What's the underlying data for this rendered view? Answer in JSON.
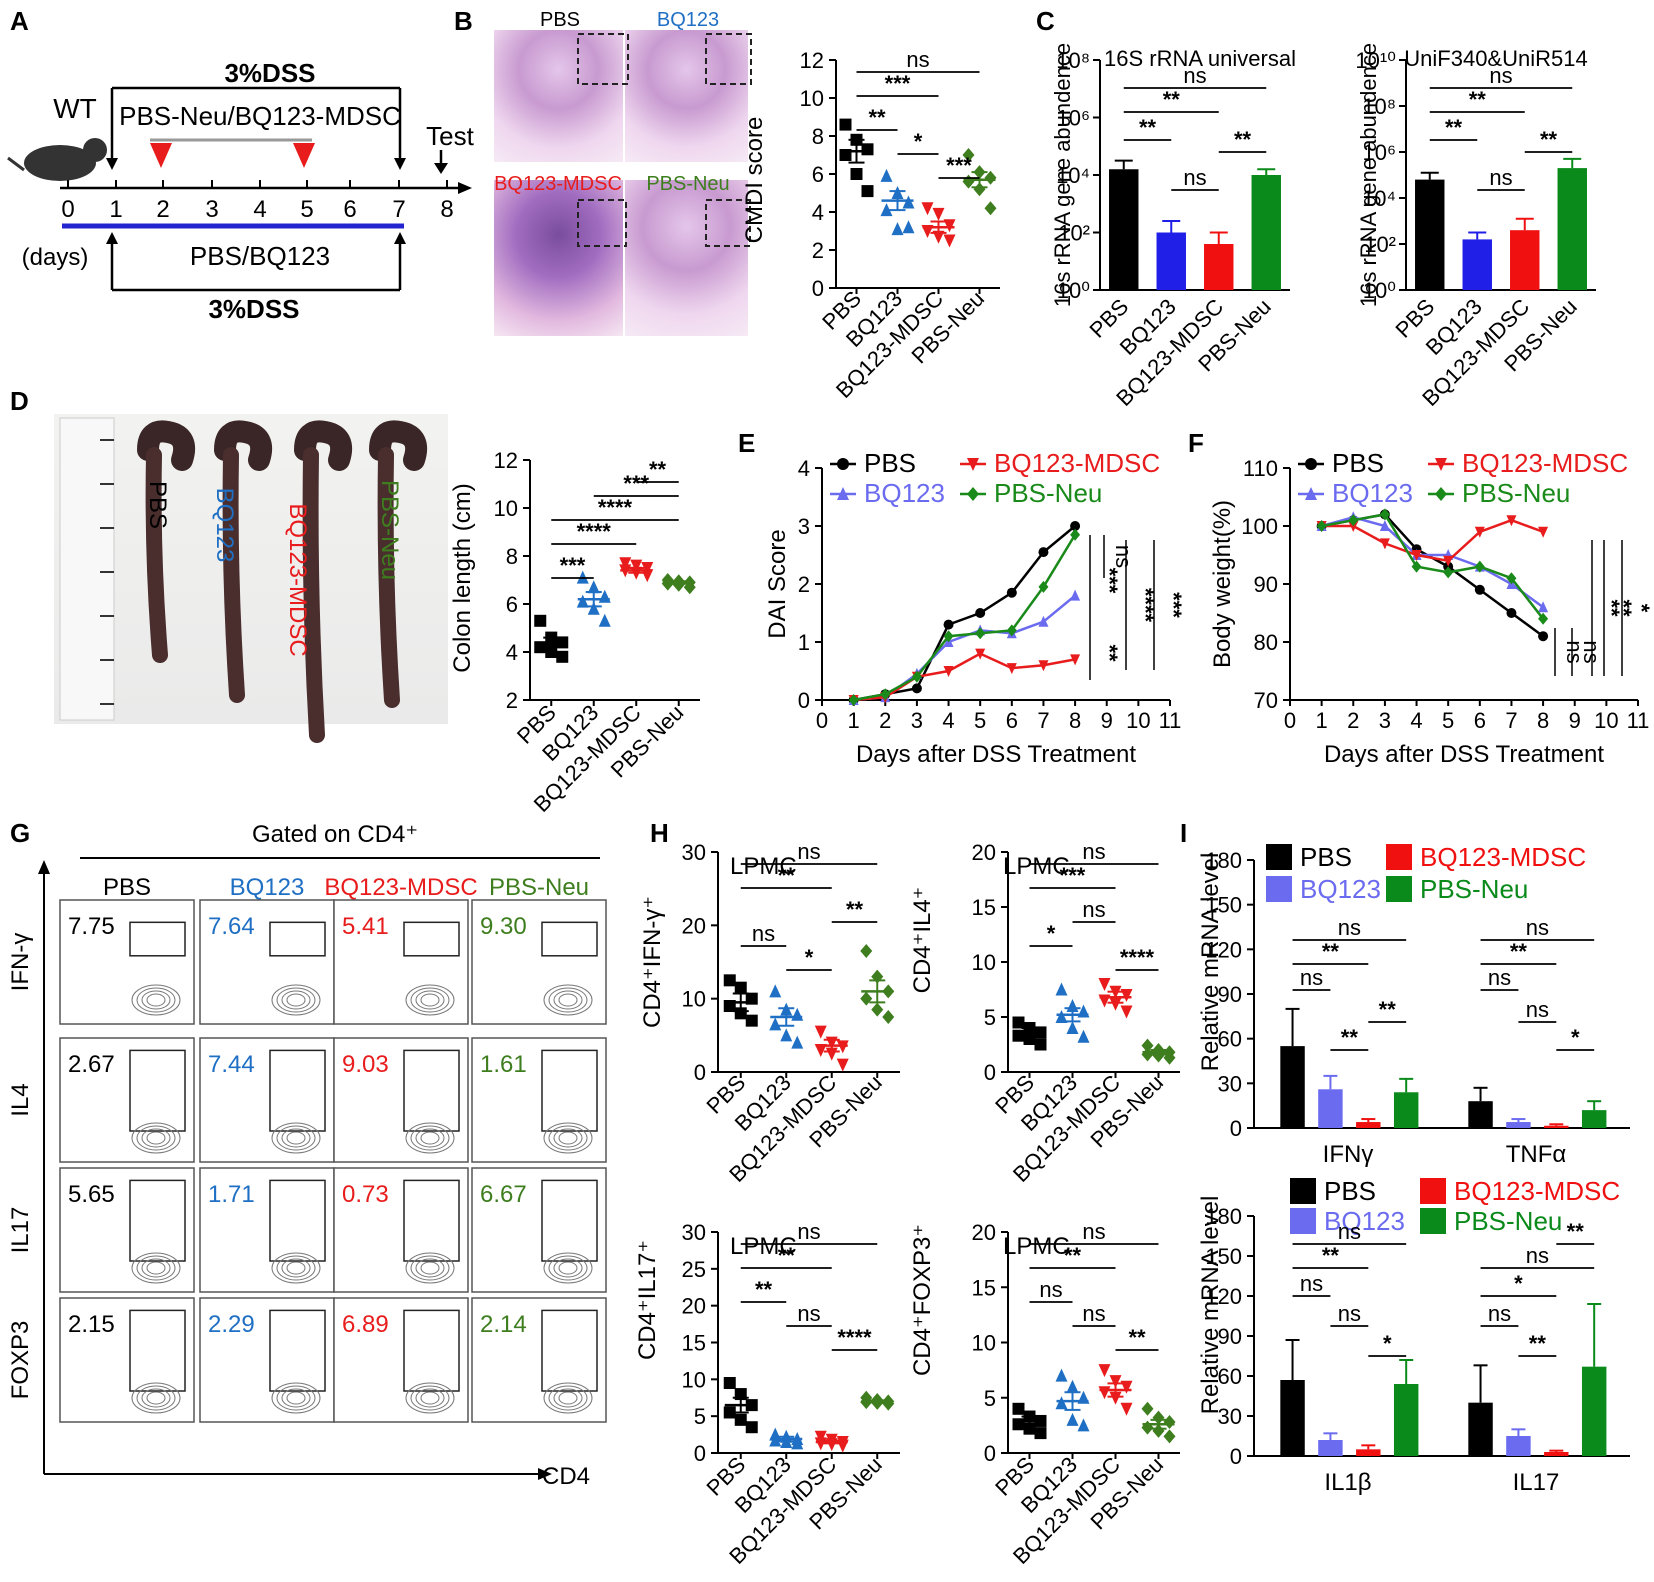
{
  "colors": {
    "PBS": "#000000",
    "BQ123": "#1f6fc4",
    "BQ123-MDSC": "#e81c1c",
    "PBS-Neu": "#3e7e1f",
    "BQ123_line": "#6b6bf0",
    "PBS-Neu_line": "#1a8a1a"
  },
  "groups": [
    "PBS",
    "BQ123",
    "BQ123-MDSC",
    "PBS-Neu"
  ],
  "panel_labels": [
    "A",
    "B",
    "C",
    "D",
    "E",
    "F",
    "G",
    "H",
    "I"
  ],
  "panelA": {
    "wt": "WT",
    "dss_top": "3%DSS",
    "treat_top": "PBS-Neu/BQ123-MDSC",
    "test": "Test",
    "ticks": [
      "0",
      "1",
      "2",
      "3",
      "4",
      "5",
      "6",
      "7",
      "8"
    ],
    "days": "(days)",
    "treat_bottom": "PBS/BQ123",
    "dss_bottom": "3%DSS"
  },
  "panelB": {
    "images": [
      "PBS",
      "BQ123",
      "BQ123-MDSC",
      "PBS-Neu"
    ]
  },
  "panelC": {
    "labels": [
      "PBS",
      "BQ123",
      "BQ123-MDSC",
      "PBS-Neu"
    ]
  },
  "panelG": {
    "title": "Gated on CD4⁺",
    "rows": [
      "IFN-γ",
      "IL4",
      "IL17",
      "FOXP3"
    ],
    "cols": [
      "PBS",
      "BQ123",
      "BQ123-MDSC",
      "PBS-Neu"
    ],
    "xaxis": "CD4",
    "values": [
      [
        "7.75",
        "7.64",
        "5.41",
        "9.30"
      ],
      [
        "2.67",
        "7.44",
        "9.03",
        "1.61"
      ],
      [
        "5.65",
        "1.71",
        "0.73",
        "6.67"
      ],
      [
        "2.15",
        "2.29",
        "6.89",
        "2.14"
      ]
    ]
  },
  "chart_data": [
    {
      "id": "B",
      "type": "scatter",
      "ylabel": "CMDI score",
      "ylim": [
        0,
        12
      ],
      "ticks": [
        "0",
        "2",
        "4",
        "6",
        "8",
        "10",
        "12"
      ],
      "categories": [
        "PBS",
        "BQ123",
        "BQ123-MDSC",
        "PBS-Neu"
      ],
      "means": [
        7.2,
        4.6,
        3.2,
        5.7
      ],
      "sem": [
        0.6,
        0.5,
        0.3,
        0.4
      ],
      "points": [
        [
          8.6,
          7.8,
          7.3,
          7.0,
          6.0,
          5.1
        ],
        [
          5.9,
          5.0,
          4.5,
          4.1,
          3.1,
          3.2
        ],
        [
          4.2,
          3.9,
          3.3,
          3.0,
          2.7,
          2.5
        ],
        [
          7.0,
          6.1,
          5.8,
          5.6,
          5.2,
          4.2
        ]
      ],
      "sig": [
        {
          "a": 0,
          "b": 3,
          "t": "ns"
        },
        {
          "a": 0,
          "b": 2,
          "t": "***"
        },
        {
          "a": 0,
          "b": 1,
          "t": "**"
        },
        {
          "a": 1,
          "b": 2,
          "t": "*"
        },
        {
          "a": 2,
          "b": 3,
          "t": "***"
        }
      ]
    },
    {
      "id": "D1",
      "type": "bar",
      "title": "16S rRNA universal",
      "ylabel": "16s rRNA gene abundence",
      "log": true,
      "ylim": [
        0,
        8
      ],
      "ticks": [
        "10⁰",
        "10²",
        "10⁴",
        "10⁶",
        "10⁸"
      ],
      "categories": [
        "PBS",
        "BQ123",
        "BQ123-MDSC",
        "PBS-Neu"
      ],
      "values": [
        4.2,
        2.0,
        1.6,
        4.0
      ],
      "err": [
        0.3,
        0.4,
        0.4,
        0.2
      ],
      "sig": [
        {
          "a": 0,
          "b": 3,
          "t": "ns"
        },
        {
          "a": 0,
          "b": 2,
          "t": "**"
        },
        {
          "a": 0,
          "b": 1,
          "t": "**"
        },
        {
          "a": 1,
          "b": 2,
          "t": "ns"
        },
        {
          "a": 2,
          "b": 3,
          "t": "**"
        }
      ]
    },
    {
      "id": "D2",
      "type": "bar",
      "title": "UniF340&UniR514",
      "ylabel": "16s rRNA gene abundence",
      "log": true,
      "ylim": [
        0,
        10
      ],
      "ticks": [
        "10⁰",
        "10²",
        "10⁴",
        "10⁶",
        "10⁸",
        "10¹⁰"
      ],
      "categories": [
        "PBS",
        "BQ123",
        "BQ123-MDSC",
        "PBS-Neu"
      ],
      "values": [
        4.8,
        2.2,
        2.6,
        5.3
      ],
      "err": [
        0.3,
        0.3,
        0.5,
        0.4
      ],
      "sig": [
        {
          "a": 0,
          "b": 3,
          "t": "ns"
        },
        {
          "a": 0,
          "b": 2,
          "t": "**"
        },
        {
          "a": 0,
          "b": 1,
          "t": "**"
        },
        {
          "a": 1,
          "b": 2,
          "t": "ns"
        },
        {
          "a": 2,
          "b": 3,
          "t": "**"
        }
      ]
    },
    {
      "id": "C",
      "type": "scatter",
      "ylabel": "Colon length (cm)",
      "ylim": [
        2,
        12
      ],
      "ticks": [
        "2",
        "4",
        "6",
        "8",
        "10",
        "12"
      ],
      "categories": [
        "PBS",
        "BQ123",
        "BQ123-MDSC",
        "PBS-Neu"
      ],
      "means": [
        4.3,
        6.2,
        7.4,
        6.9
      ],
      "sem": [
        0.3,
        0.3,
        0.1,
        0.05
      ],
      "points": [
        [
          5.3,
          4.6,
          4.4,
          4.2,
          4.0,
          3.8
        ],
        [
          7.1,
          6.7,
          6.3,
          6.1,
          5.8,
          5.3
        ],
        [
          7.7,
          7.6,
          7.5,
          7.4,
          7.3,
          7.2
        ],
        [
          7.0,
          6.95,
          6.9,
          6.85,
          6.8,
          6.7
        ]
      ],
      "sig": [
        {
          "a": 2,
          "b": 3,
          "t": "**"
        },
        {
          "a": 1,
          "b": 3,
          "t": "***"
        },
        {
          "a": 0,
          "b": 3,
          "t": "****"
        },
        {
          "a": 0,
          "b": 2,
          "t": "****"
        },
        {
          "a": 0,
          "b": 1,
          "t": "***"
        }
      ]
    },
    {
      "id": "E",
      "type": "line",
      "xlabel": "Days after DSS Treatment",
      "ylabel": "DAI Score",
      "xlim": [
        0,
        11
      ],
      "ylim": [
        0,
        4
      ],
      "x": [
        1,
        2,
        3,
        4,
        5,
        6,
        7,
        8
      ],
      "series": [
        {
          "name": "PBS",
          "values": [
            0,
            0.1,
            0.2,
            1.3,
            1.5,
            1.85,
            2.55,
            3.0
          ]
        },
        {
          "name": "BQ123",
          "values": [
            0,
            0.05,
            0.45,
            1.0,
            1.2,
            1.15,
            1.35,
            1.8
          ]
        },
        {
          "name": "BQ123-MDSC",
          "values": [
            0,
            0.05,
            0.4,
            0.5,
            0.8,
            0.55,
            0.6,
            0.7
          ]
        },
        {
          "name": "PBS-Neu",
          "values": [
            0,
            0.1,
            0.4,
            1.1,
            1.15,
            1.2,
            1.95,
            2.85
          ]
        }
      ],
      "sig": [
        "***",
        "ns",
        "**",
        "****",
        "***"
      ]
    },
    {
      "id": "F",
      "type": "line",
      "xlabel": "Days after DSS Treatment",
      "ylabel": "Body weight(%)",
      "xlim": [
        0,
        11
      ],
      "ylim": [
        70,
        110
      ],
      "x": [
        1,
        2,
        3,
        4,
        5,
        6,
        7,
        8
      ],
      "series": [
        {
          "name": "PBS",
          "values": [
            100,
            101,
            102,
            96,
            93,
            89,
            85,
            81
          ]
        },
        {
          "name": "BQ123",
          "values": [
            100,
            101.5,
            100,
            95,
            95,
            93,
            90,
            86
          ]
        },
        {
          "name": "BQ123-MDSC",
          "values": [
            100,
            100,
            97,
            95,
            94,
            99,
            101,
            99
          ]
        },
        {
          "name": "PBS-Neu",
          "values": [
            100,
            101,
            102,
            93,
            92,
            93,
            91,
            84
          ]
        }
      ],
      "sig": [
        "ns",
        "ns",
        "**",
        "**",
        "*"
      ]
    },
    {
      "id": "H1",
      "type": "scatter",
      "label": "LPMC",
      "ylabel": "CD4⁺IFN-γ⁺",
      "ylim": [
        0,
        30
      ],
      "ticks": [
        "0",
        "10",
        "20",
        "30"
      ],
      "categories": [
        "PBS",
        "BQ123",
        "BQ123-MDSC",
        "PBS-Neu"
      ],
      "means": [
        9.5,
        7.5,
        3.6,
        11.0
      ],
      "sem": [
        1.2,
        1.2,
        0.8,
        1.5
      ],
      "points": [
        [
          12.5,
          11.5,
          10.0,
          9.0,
          8.0,
          7.0
        ],
        [
          11.0,
          8.5,
          7.8,
          6.5,
          5.0,
          4.0
        ],
        [
          5.5,
          4.0,
          3.5,
          3.0,
          2.5,
          1.0
        ],
        [
          16.5,
          13.0,
          11.0,
          10.0,
          8.5,
          7.5
        ]
      ],
      "sig": [
        {
          "a": 0,
          "b": 3,
          "t": "ns"
        },
        {
          "a": 0,
          "b": 2,
          "t": "**"
        },
        {
          "a": 2,
          "b": 3,
          "t": "**"
        },
        {
          "a": 0,
          "b": 1,
          "t": "ns"
        },
        {
          "a": 1,
          "b": 2,
          "t": "*"
        }
      ]
    },
    {
      "id": "H2",
      "type": "scatter",
      "label": "LPMC",
      "ylabel": "CD4⁺IL4⁺",
      "ylim": [
        0,
        20
      ],
      "ticks": [
        "0",
        "5",
        "10",
        "15",
        "20"
      ],
      "categories": [
        "PBS",
        "BQ123",
        "BQ123-MDSC",
        "PBS-Neu"
      ],
      "means": [
        3.6,
        5.2,
        6.8,
        1.8
      ],
      "sem": [
        0.4,
        0.6,
        0.5,
        0.2
      ],
      "points": [
        [
          4.5,
          4.0,
          3.6,
          3.3,
          3.0,
          2.5
        ],
        [
          7.5,
          6.0,
          5.5,
          5.0,
          4.0,
          3.2
        ],
        [
          8.0,
          7.3,
          7.0,
          6.5,
          6.2,
          5.5
        ],
        [
          2.4,
          2.0,
          1.8,
          1.6,
          1.5,
          1.3
        ]
      ],
      "sig": [
        {
          "a": 0,
          "b": 3,
          "t": "ns"
        },
        {
          "a": 0,
          "b": 2,
          "t": "***"
        },
        {
          "a": 1,
          "b": 2,
          "t": "ns"
        },
        {
          "a": 0,
          "b": 1,
          "t": "*"
        },
        {
          "a": 2,
          "b": 3,
          "t": "****"
        }
      ]
    },
    {
      "id": "H3",
      "type": "scatter",
      "label": "LPMC",
      "ylabel": "CD4⁺IL17⁺",
      "ylim": [
        0,
        30
      ],
      "ticks": [
        "0",
        "5",
        "10",
        "15",
        "20",
        "25",
        "30"
      ],
      "categories": [
        "PBS",
        "BQ123",
        "BQ123-MDSC",
        "PBS-Neu"
      ],
      "means": [
        6.5,
        1.9,
        1.5,
        7.0
      ],
      "sem": [
        1.0,
        0.3,
        0.2,
        0.15
      ],
      "points": [
        [
          9.5,
          8.0,
          6.5,
          5.5,
          4.5,
          3.5
        ],
        [
          2.5,
          2.2,
          1.9,
          1.7,
          1.5,
          1.3
        ],
        [
          2.2,
          1.8,
          1.5,
          1.3,
          1.2,
          1.0
        ],
        [
          7.5,
          7.2,
          7.0,
          6.9,
          6.8,
          6.7
        ]
      ],
      "sig": [
        {
          "a": 0,
          "b": 3,
          "t": "ns"
        },
        {
          "a": 0,
          "b": 2,
          "t": "**"
        },
        {
          "a": 0,
          "b": 1,
          "t": "**"
        },
        {
          "a": 1,
          "b": 2,
          "t": "ns"
        },
        {
          "a": 2,
          "b": 3,
          "t": "****"
        }
      ]
    },
    {
      "id": "H4",
      "type": "scatter",
      "label": "LPMC",
      "ylabel": "CD4⁺FOXP3⁺",
      "ylim": [
        0,
        20
      ],
      "ticks": [
        "0",
        "5",
        "10",
        "15",
        "20"
      ],
      "categories": [
        "PBS",
        "BQ123",
        "BQ123-MDSC",
        "PBS-Neu"
      ],
      "means": [
        2.9,
        4.7,
        5.7,
        2.6
      ],
      "sem": [
        0.4,
        0.8,
        0.6,
        0.4
      ],
      "points": [
        [
          4.0,
          3.3,
          2.9,
          2.6,
          2.2,
          1.8
        ],
        [
          7.0,
          6.0,
          5.0,
          4.5,
          3.0,
          2.5
        ],
        [
          7.5,
          6.5,
          6.0,
          5.5,
          5.0,
          4.0
        ],
        [
          4.0,
          3.2,
          2.8,
          2.3,
          2.0,
          1.5
        ]
      ],
      "sig": [
        {
          "a": 0,
          "b": 3,
          "t": "ns"
        },
        {
          "a": 0,
          "b": 2,
          "t": "**"
        },
        {
          "a": 0,
          "b": 1,
          "t": "ns"
        },
        {
          "a": 1,
          "b": 2,
          "t": "ns"
        },
        {
          "a": 2,
          "b": 3,
          "t": "**"
        }
      ]
    },
    {
      "id": "I1",
      "type": "bar",
      "ylabel": "Relative mRNA  level",
      "ylim": [
        0,
        180
      ],
      "ticks": [
        "0",
        "30",
        "60",
        "90",
        "120",
        "150",
        "180"
      ],
      "categories": [
        "IFNγ",
        "TNFα"
      ],
      "series": [
        {
          "name": "PBS",
          "values": [
            55,
            18
          ],
          "err": [
            25,
            9
          ]
        },
        {
          "name": "BQ123",
          "values": [
            26,
            4
          ],
          "err": [
            9,
            2
          ]
        },
        {
          "name": "BQ123-MDSC",
          "values": [
            4,
            1.5
          ],
          "err": [
            2,
            1
          ]
        },
        {
          "name": "PBS-Neu",
          "values": [
            24,
            12
          ],
          "err": [
            9,
            6
          ]
        }
      ],
      "sig": [
        {
          "c": 0,
          "a": 0,
          "b": 3,
          "t": "ns"
        },
        {
          "c": 0,
          "a": 0,
          "b": 2,
          "t": "**"
        },
        {
          "c": 0,
          "a": 0,
          "b": 1,
          "t": "ns"
        },
        {
          "c": 0,
          "a": 2,
          "b": 3,
          "t": "**"
        },
        {
          "c": 0,
          "a": 1,
          "b": 2,
          "t": "**"
        },
        {
          "c": 1,
          "a": 0,
          "b": 3,
          "t": "ns"
        },
        {
          "c": 1,
          "a": 0,
          "b": 2,
          "t": "**"
        },
        {
          "c": 1,
          "a": 0,
          "b": 1,
          "t": "ns"
        },
        {
          "c": 1,
          "a": 1,
          "b": 2,
          "t": "ns"
        },
        {
          "c": 1,
          "a": 2,
          "b": 3,
          "t": "*"
        }
      ]
    },
    {
      "id": "I2",
      "type": "bar",
      "ylabel": "Relative mRNA  level",
      "ylim": [
        0,
        180
      ],
      "ticks": [
        "0",
        "30",
        "60",
        "90",
        "120",
        "150",
        "180"
      ],
      "categories": [
        "IL1β",
        "IL17"
      ],
      "series": [
        {
          "name": "PBS",
          "values": [
            57,
            40
          ],
          "err": [
            30,
            28
          ]
        },
        {
          "name": "BQ123",
          "values": [
            12,
            15
          ],
          "err": [
            5,
            5
          ]
        },
        {
          "name": "BQ123-MDSC",
          "values": [
            5,
            3
          ],
          "err": [
            3,
            1
          ]
        },
        {
          "name": "PBS-Neu",
          "values": [
            54,
            67
          ],
          "err": [
            18,
            47
          ]
        }
      ],
      "sig": [
        {
          "c": 0,
          "a": 0,
          "b": 3,
          "t": "ns"
        },
        {
          "c": 0,
          "a": 0,
          "b": 2,
          "t": "**"
        },
        {
          "c": 0,
          "a": 0,
          "b": 1,
          "t": "ns"
        },
        {
          "c": 0,
          "a": 1,
          "b": 2,
          "t": "ns"
        },
        {
          "c": 0,
          "a": 2,
          "b": 3,
          "t": "*"
        },
        {
          "c": 1,
          "a": 2,
          "b": 3,
          "t": "**"
        },
        {
          "c": 1,
          "a": 0,
          "b": 3,
          "t": "ns"
        },
        {
          "c": 1,
          "a": 0,
          "b": 2,
          "t": "*"
        },
        {
          "c": 1,
          "a": 0,
          "b": 1,
          "t": "ns"
        },
        {
          "c": 1,
          "a": 1,
          "b": 2,
          "t": "**"
        }
      ]
    }
  ]
}
